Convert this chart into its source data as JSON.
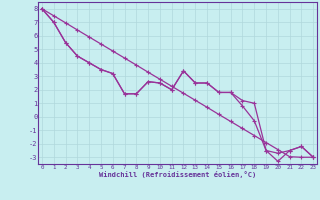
{
  "xlabel": "Windchill (Refroidissement éolien,°C)",
  "bg_color": "#c8eef0",
  "grid_color": "#b0d8dc",
  "line_color": "#993399",
  "axis_color": "#663399",
  "text_color": "#663399",
  "ylim": [
    -3.5,
    8.5
  ],
  "xlim": [
    -0.3,
    23.3
  ],
  "yticks": [
    -3,
    -2,
    -1,
    0,
    1,
    2,
    3,
    4,
    5,
    6,
    7,
    8
  ],
  "xticks": [
    0,
    1,
    2,
    3,
    4,
    5,
    6,
    7,
    8,
    9,
    10,
    11,
    12,
    13,
    14,
    15,
    16,
    17,
    18,
    19,
    20,
    21,
    22,
    23
  ],
  "series_straight": [
    8.0,
    7.48,
    6.96,
    6.43,
    5.91,
    5.39,
    4.87,
    4.35,
    3.83,
    3.3,
    2.78,
    2.26,
    1.74,
    1.22,
    0.7,
    0.17,
    -0.35,
    -0.87,
    -1.39,
    -1.91,
    -2.43,
    -2.96,
    -3.0,
    -3.0
  ],
  "series_wavy1": [
    8.0,
    7.0,
    5.5,
    4.5,
    4.0,
    3.5,
    3.2,
    1.7,
    1.7,
    2.6,
    2.5,
    2.0,
    3.4,
    2.5,
    2.5,
    1.8,
    1.8,
    1.2,
    1.0,
    -2.5,
    -3.3,
    -2.5,
    -2.2,
    -3.0
  ],
  "series_wavy2": [
    8.0,
    7.0,
    5.5,
    4.5,
    4.0,
    3.5,
    3.2,
    1.7,
    1.7,
    2.6,
    2.5,
    2.0,
    3.4,
    2.5,
    2.5,
    1.8,
    1.8,
    0.8,
    -0.3,
    -2.5,
    -2.7,
    -2.5,
    -2.2,
    -3.0
  ]
}
